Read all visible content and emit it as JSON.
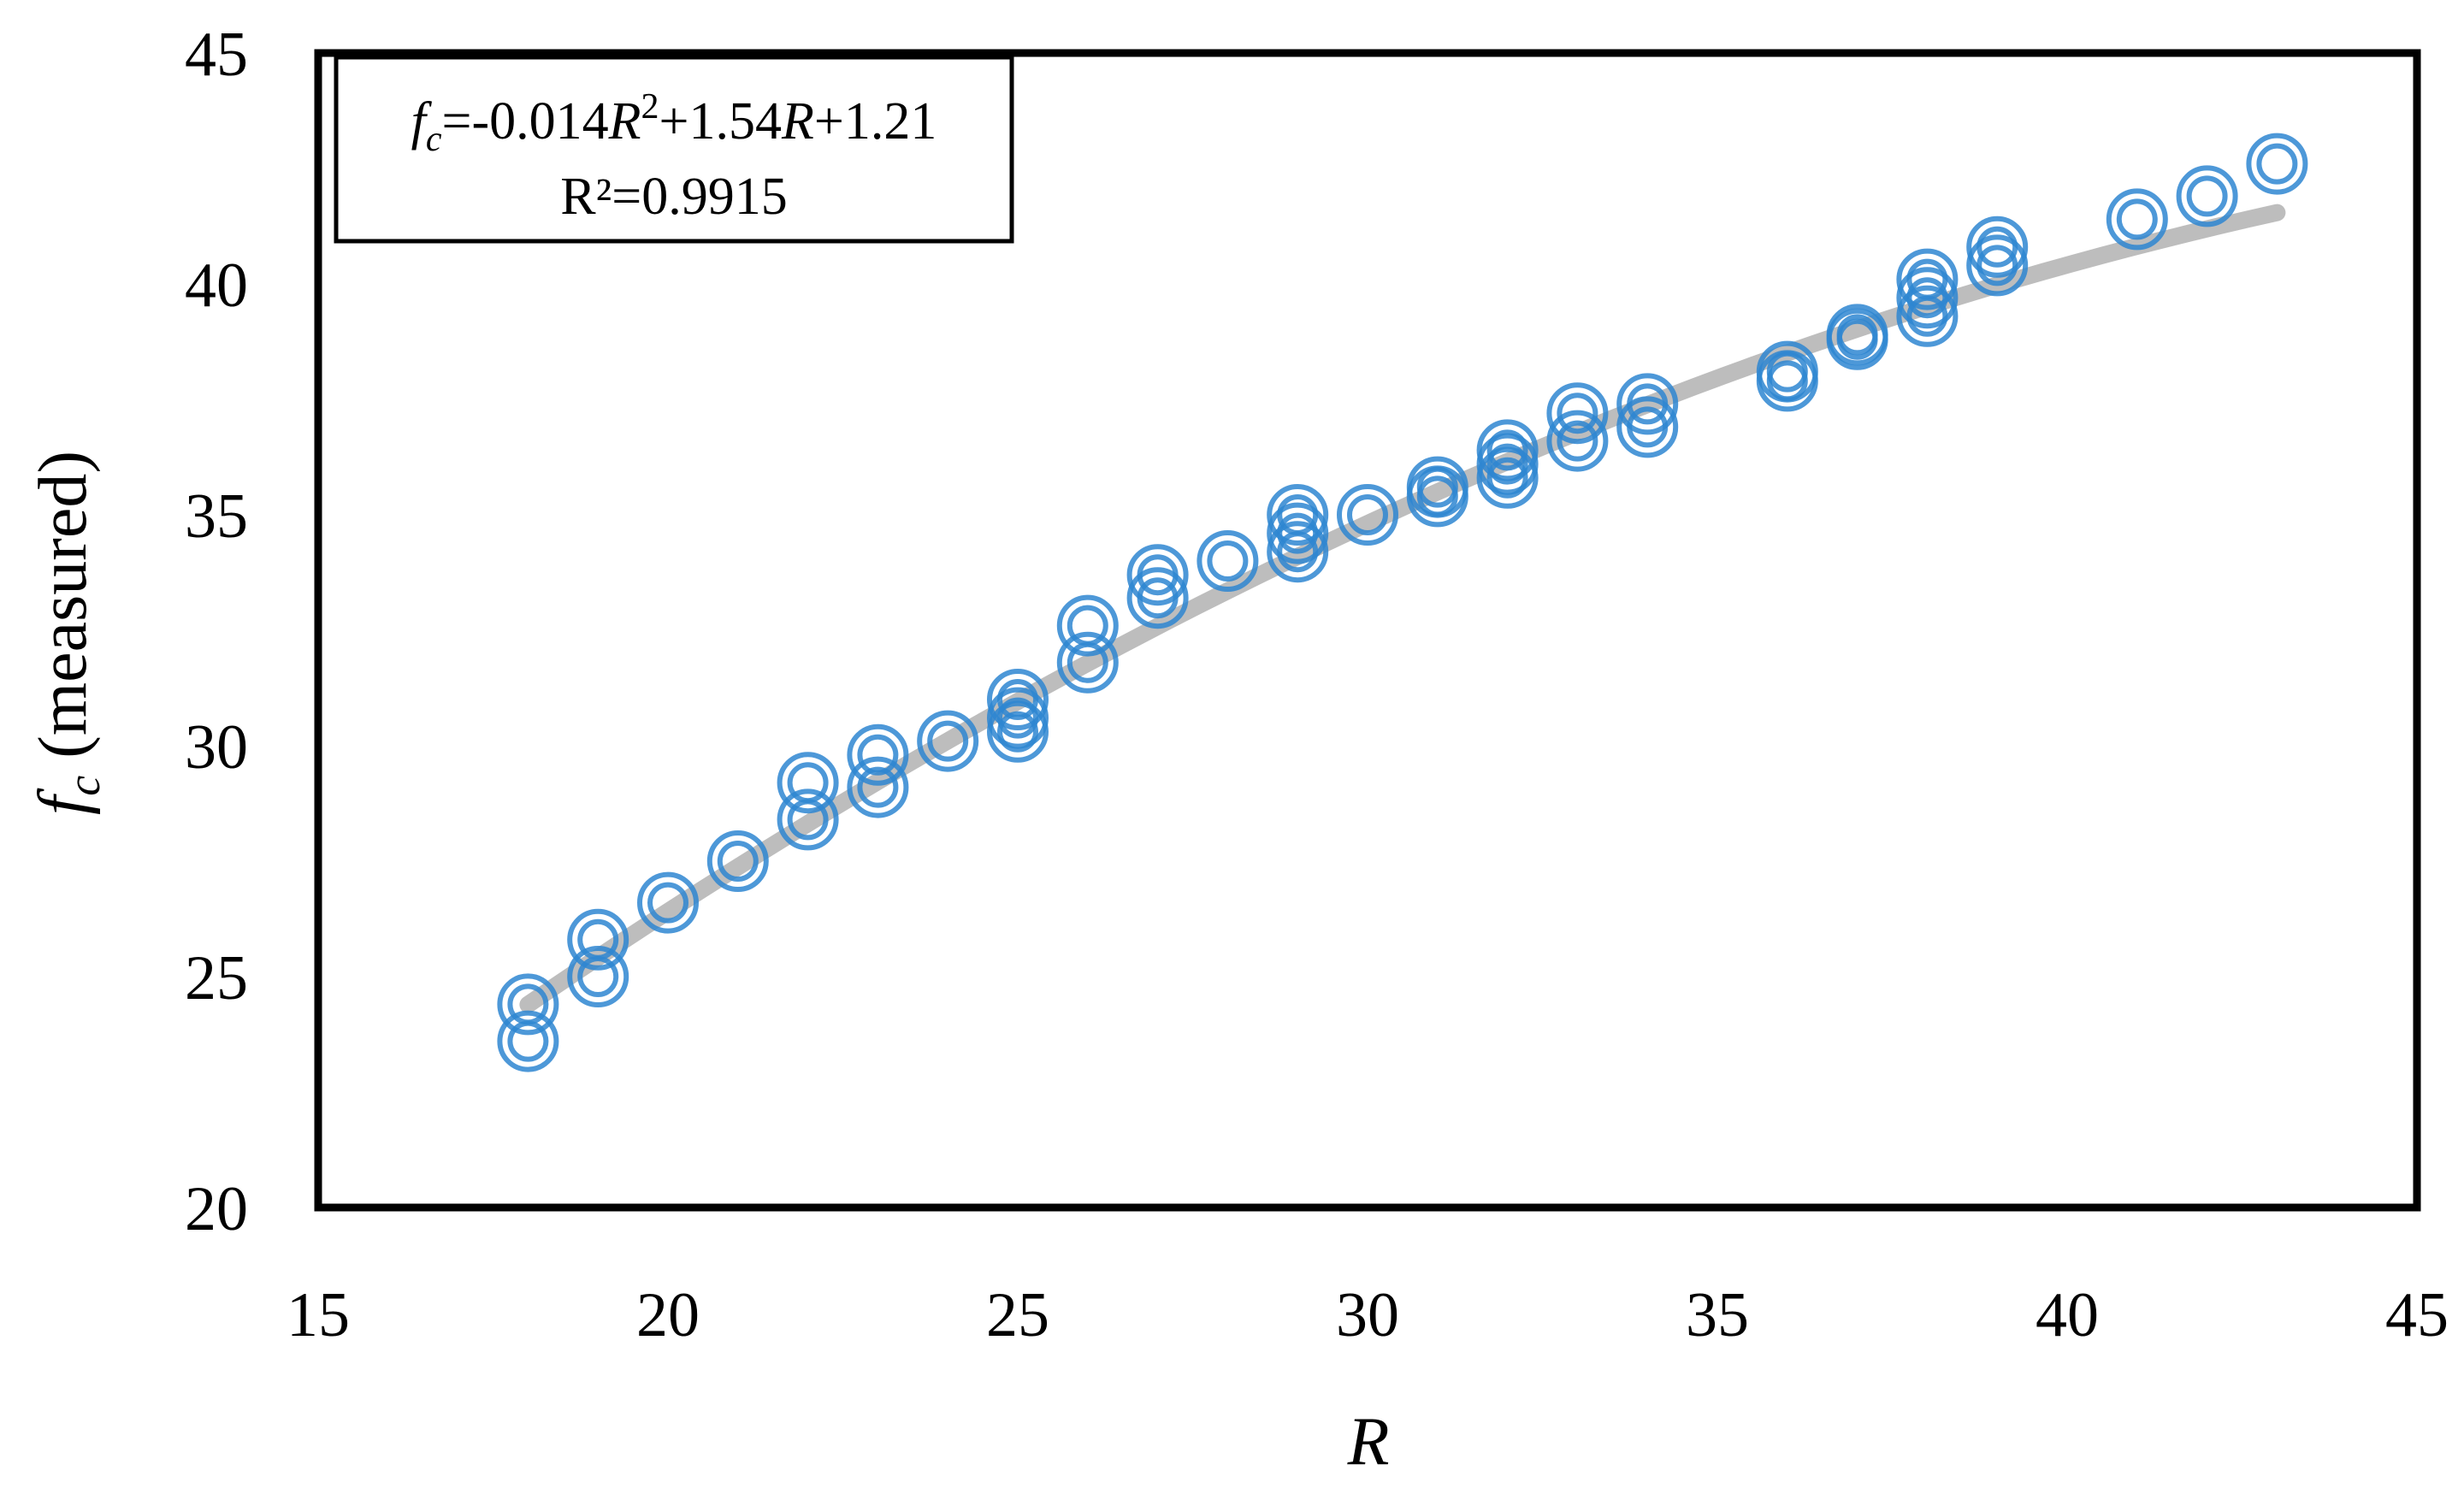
{
  "chart_data": {
    "type": "scatter",
    "title": "",
    "xlabel": "R",
    "ylabel_var": "f",
    "ylabel_sub": "c",
    "ylabel_rest": " (measured)",
    "xlim": [
      15,
      45
    ],
    "ylim": [
      20,
      45
    ],
    "xticks": [
      "15",
      "20",
      "25",
      "30",
      "35",
      "40",
      "45"
    ],
    "yticks": [
      "20",
      "25",
      "30",
      "35",
      "40",
      "45"
    ],
    "grid": false,
    "legend": "none",
    "marker": "double-ring",
    "marker_color": "#2E86D1",
    "trendline_color": "#BDBDBD",
    "frame_color": "#000000",
    "equation": {
      "lhs_var": "f",
      "lhs_sub": "c",
      "rhs_p1": "=-0.014",
      "rhs_var1": "R",
      "rhs_sup": "2",
      "rhs_p2": "+1.54",
      "rhs_var2": "R",
      "rhs_p3": "+1.21",
      "r2": "R²=0.9915"
    },
    "fit": {
      "a": -0.014,
      "b": 1.54,
      "c": 1.21,
      "x_range": [
        18,
        43
      ]
    },
    "points": [
      [
        18,
        24.4
      ],
      [
        18,
        23.6
      ],
      [
        19,
        25.8
      ],
      [
        19,
        25.0
      ],
      [
        20,
        26.6
      ],
      [
        21,
        27.5
      ],
      [
        22,
        29.2
      ],
      [
        22,
        28.4
      ],
      [
        23,
        29.8
      ],
      [
        23,
        29.1
      ],
      [
        24,
        30.1
      ],
      [
        25,
        31.0
      ],
      [
        25,
        30.6
      ],
      [
        25,
        30.3
      ],
      [
        26,
        32.6
      ],
      [
        26,
        31.8
      ],
      [
        27,
        33.7
      ],
      [
        27,
        33.2
      ],
      [
        28,
        34.0
      ],
      [
        29,
        35.0
      ],
      [
        29,
        34.6
      ],
      [
        29,
        34.2
      ],
      [
        30,
        35.0
      ],
      [
        31,
        35.6
      ],
      [
        31,
        35.4
      ],
      [
        32,
        36.4
      ],
      [
        32,
        36.1
      ],
      [
        32,
        35.8
      ],
      [
        33,
        37.2
      ],
      [
        33,
        36.6
      ],
      [
        34,
        37.4
      ],
      [
        34,
        36.9
      ],
      [
        36,
        38.1
      ],
      [
        36,
        37.9
      ],
      [
        37,
        38.9
      ],
      [
        37,
        38.8
      ],
      [
        38,
        40.1
      ],
      [
        38,
        39.7
      ],
      [
        38,
        39.3
      ],
      [
        39,
        40.8
      ],
      [
        39,
        40.4
      ],
      [
        41,
        41.4
      ],
      [
        42,
        41.9
      ],
      [
        43,
        42.6
      ]
    ]
  }
}
